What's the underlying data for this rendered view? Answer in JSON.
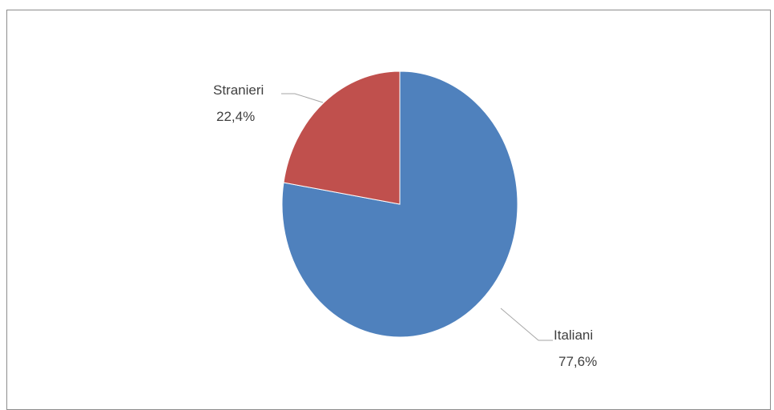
{
  "chart_data": {
    "type": "pie",
    "title": "",
    "slices": [
      {
        "name": "Italiani",
        "value": 77.6,
        "label": "77,6%",
        "color": "#4f81bd"
      },
      {
        "name": "Stranieri",
        "value": 22.4,
        "label": "22,4%",
        "color": "#c0504d"
      }
    ],
    "start_angle_deg": 0,
    "direction": "clockwise",
    "legend": "none",
    "data_labels": "outside-with-leader-lines"
  }
}
